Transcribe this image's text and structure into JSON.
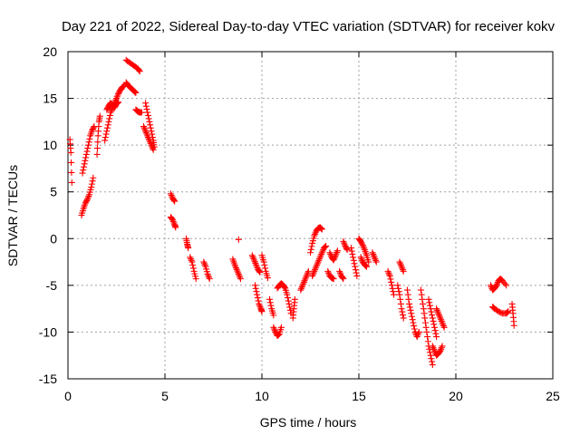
{
  "chart_data": {
    "type": "scatter",
    "title": "Day 221 of 2022, Sidereal Day-to-day VTEC variation (SDTVAR) for receiver kokv",
    "xlabel": "GPS time / hours",
    "ylabel": "SDTVAR / TECUs",
    "xlim": [
      0,
      25
    ],
    "ylim": [
      -15,
      20
    ],
    "xticks": [
      "0",
      "5",
      "10",
      "15",
      "20",
      "25"
    ],
    "yticks": [
      "20",
      "15",
      "10",
      "5",
      "0",
      "-5",
      "-10",
      "-15"
    ],
    "grid": true,
    "marker": "+",
    "color": "#ff0000",
    "series": [
      {
        "name": "SDTVAR",
        "arcs": [
          [
            [
              0.1,
              10.6
            ],
            [
              0.15,
              9.2
            ],
            [
              0.2,
              6.0
            ]
          ],
          [
            [
              0.7,
              2.5
            ],
            [
              0.8,
              3.2
            ],
            [
              0.9,
              3.8
            ],
            [
              1.0,
              4.2
            ],
            [
              1.1,
              4.7
            ],
            [
              1.2,
              5.5
            ],
            [
              1.3,
              6.5
            ]
          ],
          [
            [
              0.75,
              7.0
            ],
            [
              0.85,
              8.0
            ],
            [
              0.95,
              9.0
            ],
            [
              1.05,
              10.0
            ],
            [
              1.15,
              11.0
            ],
            [
              1.25,
              11.6
            ],
            [
              1.35,
              12.0
            ]
          ],
          [
            [
              1.5,
              9.0
            ],
            [
              1.55,
              11.0
            ],
            [
              1.6,
              12.5
            ],
            [
              1.65,
              13.1
            ]
          ],
          [
            [
              1.9,
              10.5
            ],
            [
              2.0,
              11.5
            ],
            [
              2.1,
              12.5
            ],
            [
              2.2,
              13.5
            ],
            [
              2.3,
              14.0
            ],
            [
              2.4,
              14.5
            ],
            [
              2.5,
              15.0
            ],
            [
              2.6,
              15.5
            ],
            [
              2.7,
              15.9
            ],
            [
              2.8,
              16.2
            ],
            [
              2.9,
              16.3
            ]
          ],
          [
            [
              2.0,
              13.8
            ],
            [
              2.1,
              14.2
            ],
            [
              2.2,
              14.5
            ],
            [
              2.3,
              14.3
            ],
            [
              2.4,
              14.0
            ],
            [
              2.5,
              14.4
            ],
            [
              2.6,
              14.6
            ]
          ],
          [
            [
              3.0,
              16.7
            ],
            [
              3.1,
              16.4
            ],
            [
              3.2,
              16.2
            ],
            [
              3.3,
              16.0
            ],
            [
              3.4,
              15.8
            ],
            [
              3.5,
              15.6
            ]
          ],
          [
            [
              3.0,
              19.1
            ],
            [
              3.2,
              18.8
            ],
            [
              3.4,
              18.5
            ],
            [
              3.6,
              18.2
            ],
            [
              3.7,
              17.9
            ]
          ],
          [
            [
              3.5,
              13.8
            ],
            [
              3.6,
              13.6
            ],
            [
              3.7,
              13.5
            ],
            [
              3.8,
              13.5
            ]
          ],
          [
            [
              4.0,
              14.5
            ],
            [
              4.1,
              13.5
            ],
            [
              4.2,
              12.5
            ],
            [
              4.3,
              11.5
            ],
            [
              4.4,
              10.5
            ],
            [
              4.45,
              9.8
            ]
          ],
          [
            [
              3.9,
              12.0
            ],
            [
              4.0,
              11.5
            ],
            [
              4.1,
              11.0
            ],
            [
              4.2,
              10.5
            ],
            [
              4.3,
              10.0
            ],
            [
              4.4,
              9.5
            ]
          ],
          [
            [
              5.3,
              4.8
            ],
            [
              5.4,
              4.3
            ],
            [
              5.5,
              4.0
            ]
          ],
          [
            [
              5.3,
              2.3
            ],
            [
              5.4,
              2.0
            ],
            [
              5.5,
              1.5
            ],
            [
              5.55,
              1.2
            ]
          ],
          [
            [
              6.1,
              0.0
            ],
            [
              6.15,
              -0.6
            ],
            [
              6.2,
              -1.0
            ]
          ],
          [
            [
              6.3,
              -2.0
            ],
            [
              6.4,
              -2.5
            ],
            [
              6.5,
              -3.5
            ],
            [
              6.6,
              -4.3
            ]
          ],
          [
            [
              7.0,
              -2.5
            ],
            [
              7.1,
              -3.0
            ],
            [
              7.2,
              -3.8
            ],
            [
              7.3,
              -4.3
            ]
          ],
          [
            [
              8.5,
              -2.2
            ],
            [
              8.6,
              -2.8
            ],
            [
              8.7,
              -3.3
            ],
            [
              8.8,
              -3.8
            ],
            [
              8.9,
              -4.3
            ]
          ],
          [
            [
              8.8,
              -0.1
            ]
          ],
          [
            [
              9.5,
              -1.8
            ],
            [
              9.6,
              -2.3
            ],
            [
              9.7,
              -2.8
            ],
            [
              9.8,
              -3.3
            ],
            [
              9.9,
              -3.6
            ]
          ],
          [
            [
              9.65,
              -5.0
            ],
            [
              9.75,
              -6.0
            ],
            [
              9.85,
              -7.0
            ],
            [
              9.95,
              -7.5
            ],
            [
              10.0,
              -7.8
            ]
          ],
          [
            [
              10.0,
              -1.8
            ],
            [
              10.1,
              -2.5
            ],
            [
              10.2,
              -3.5
            ],
            [
              10.3,
              -4.2
            ]
          ],
          [
            [
              10.4,
              -6.5
            ],
            [
              10.5,
              -7.5
            ],
            [
              10.6,
              -8.2
            ]
          ],
          [
            [
              10.6,
              -9.5
            ],
            [
              10.7,
              -10.0
            ],
            [
              10.8,
              -10.4
            ],
            [
              10.9,
              -10.2
            ],
            [
              11.0,
              -9.5
            ]
          ],
          [
            [
              10.8,
              -5.3
            ],
            [
              10.9,
              -5.0
            ],
            [
              11.0,
              -4.8
            ],
            [
              11.1,
              -5.0
            ],
            [
              11.2,
              -5.3
            ],
            [
              11.3,
              -6.0
            ],
            [
              11.4,
              -7.0
            ],
            [
              11.5,
              -8.0
            ]
          ],
          [
            [
              11.6,
              -8.5
            ],
            [
              11.65,
              -7.5
            ],
            [
              11.7,
              -6.5
            ]
          ],
          [
            [
              12.0,
              -5.5
            ],
            [
              12.1,
              -5.0
            ],
            [
              12.2,
              -4.5
            ],
            [
              12.3,
              -4.0
            ],
            [
              12.4,
              -3.5
            ]
          ],
          [
            [
              12.5,
              -1.5
            ],
            [
              12.6,
              -0.5
            ],
            [
              12.7,
              0.3
            ],
            [
              12.8,
              0.8
            ],
            [
              12.9,
              1.1
            ],
            [
              13.0,
              1.2
            ],
            [
              13.1,
              1.0
            ]
          ],
          [
            [
              12.6,
              -4.0
            ],
            [
              12.7,
              -3.5
            ],
            [
              12.8,
              -3.0
            ],
            [
              12.9,
              -2.5
            ],
            [
              13.0,
              -2.0
            ],
            [
              13.1,
              -1.5
            ],
            [
              13.2,
              -1.0
            ],
            [
              13.3,
              -0.8
            ]
          ],
          [
            [
              13.4,
              -3.5
            ],
            [
              13.5,
              -4.0
            ],
            [
              13.6,
              -4.2
            ],
            [
              13.7,
              -4.3
            ]
          ],
          [
            [
              13.5,
              -1.5
            ],
            [
              13.6,
              -2.0
            ],
            [
              13.7,
              -2.3
            ],
            [
              13.8,
              -1.8
            ],
            [
              13.9,
              -1.3
            ]
          ],
          [
            [
              14.0,
              -3.5
            ],
            [
              14.1,
              -4.0
            ],
            [
              14.2,
              -4.3
            ]
          ],
          [
            [
              14.2,
              -0.3
            ],
            [
              14.3,
              -0.8
            ],
            [
              14.4,
              -1.2
            ]
          ],
          [
            [
              14.6,
              -1.0
            ],
            [
              14.7,
              -2.0
            ],
            [
              14.8,
              -3.0
            ],
            [
              14.9,
              -4.0
            ]
          ],
          [
            [
              15.0,
              0.0
            ],
            [
              15.1,
              -0.3
            ],
            [
              15.2,
              -0.7
            ],
            [
              15.3,
              -1.2
            ],
            [
              15.4,
              -1.8
            ],
            [
              15.5,
              -2.5
            ]
          ],
          [
            [
              15.1,
              -2.0
            ],
            [
              15.2,
              -2.5
            ],
            [
              15.3,
              -2.8
            ],
            [
              15.4,
              -3.0
            ]
          ],
          [
            [
              15.7,
              -1.5
            ],
            [
              15.8,
              -2.0
            ],
            [
              15.9,
              -2.5
            ]
          ],
          [
            [
              16.5,
              -3.5
            ],
            [
              16.6,
              -4.0
            ],
            [
              16.7,
              -5.0
            ],
            [
              16.8,
              -6.0
            ]
          ],
          [
            [
              17.0,
              -5.0
            ],
            [
              17.1,
              -6.0
            ],
            [
              17.2,
              -7.5
            ],
            [
              17.3,
              -8.5
            ]
          ],
          [
            [
              17.1,
              -2.5
            ],
            [
              17.2,
              -3.0
            ],
            [
              17.3,
              -3.5
            ]
          ],
          [
            [
              17.5,
              -5.5
            ],
            [
              17.6,
              -7.0
            ],
            [
              17.7,
              -8.0
            ],
            [
              17.8,
              -9.0
            ],
            [
              17.9,
              -10.0
            ],
            [
              18.0,
              -10.5
            ],
            [
              18.1,
              -10.0
            ]
          ],
          [
            [
              18.2,
              -5.5
            ],
            [
              18.3,
              -7.0
            ],
            [
              18.4,
              -8.5
            ],
            [
              18.5,
              -10.0
            ],
            [
              18.6,
              -11.5
            ],
            [
              18.7,
              -12.5
            ],
            [
              18.8,
              -13.5
            ]
          ],
          [
            [
              18.6,
              -6.5
            ],
            [
              18.7,
              -7.5
            ],
            [
              18.8,
              -8.5
            ],
            [
              18.9,
              -9.5
            ],
            [
              19.0,
              -10.5
            ]
          ],
          [
            [
              18.8,
              -11.5
            ],
            [
              18.9,
              -12.0
            ],
            [
              19.0,
              -12.5
            ],
            [
              19.1,
              -12.3
            ],
            [
              19.2,
              -12.0
            ],
            [
              19.3,
              -11.5
            ]
          ],
          [
            [
              19.0,
              -7.5
            ],
            [
              19.1,
              -8.0
            ],
            [
              19.2,
              -8.5
            ],
            [
              19.3,
              -9.0
            ],
            [
              19.4,
              -9.5
            ]
          ],
          [
            [
              21.8,
              -5.0
            ],
            [
              21.9,
              -5.5
            ],
            [
              22.0,
              -5.3
            ],
            [
              22.1,
              -5.0
            ],
            [
              22.2,
              -4.5
            ],
            [
              22.3,
              -4.3
            ],
            [
              22.4,
              -4.5
            ],
            [
              22.6,
              -5.0
            ]
          ],
          [
            [
              21.9,
              -7.3
            ],
            [
              22.0,
              -7.5
            ],
            [
              22.2,
              -7.8
            ],
            [
              22.4,
              -8.0
            ],
            [
              22.6,
              -8.0
            ],
            [
              22.7,
              -7.8
            ]
          ],
          [
            [
              22.9,
              -7.0
            ],
            [
              22.95,
              -8.0
            ],
            [
              23.0,
              -9.3
            ]
          ]
        ]
      }
    ]
  }
}
